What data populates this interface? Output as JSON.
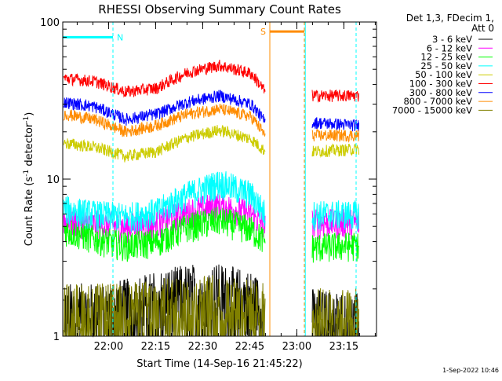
{
  "chart_data": {
    "type": "line",
    "title": "RHESSI Observing Summary Count Rates",
    "xlabel": "Start Time (14-Sep-16 21:45:22)",
    "ylabel_main": "Count Rate (s",
    "ylabel_sup1": "-1",
    "ylabel_mid": " detector",
    "ylabel_sup2": "-1",
    "ylabel_end": ")",
    "x_unit": "minutes after 21:45:22",
    "xlim": [
      0,
      100
    ],
    "ylim": [
      1,
      100
    ],
    "yscale": "log",
    "x_ticks": [
      {
        "label": "22:00",
        "value": 14.6
      },
      {
        "label": "22:15",
        "value": 29.6
      },
      {
        "label": "22:30",
        "value": 44.6
      },
      {
        "label": "22:45",
        "value": 59.6
      },
      {
        "label": "23:00",
        "value": 74.6
      },
      {
        "label": "23:15",
        "value": 89.6
      }
    ],
    "y_ticks": [
      {
        "label": "1",
        "value": 1
      },
      {
        "label": "10",
        "value": 10
      },
      {
        "label": "100",
        "value": 100
      }
    ],
    "legend_header_1": "Det 1,3, FDecim 1,",
    "legend_header_2": "Att 0",
    "legend_position": "right",
    "annotations": [
      {
        "label": "N",
        "color": "#00ffff",
        "x_start": 0,
        "x_end": 16,
        "y": 80
      },
      {
        "label": "S",
        "color": "#ff8c00",
        "x_start": 66,
        "x_end": 77,
        "y": 87
      }
    ],
    "vertical_lines": [
      {
        "x": 16,
        "color": "#00ffff",
        "dashed": true
      },
      {
        "x": 66,
        "color": "#ff8c00",
        "dashed": false
      },
      {
        "x": 77,
        "color": "#ff8c00",
        "dashed": true
      },
      {
        "x": 77.3,
        "color": "#00ffff",
        "dashed": false
      },
      {
        "x": 93.5,
        "color": "#00ffff",
        "dashed": true
      }
    ],
    "data_gap": [
      64.5,
      79.5
    ],
    "series": [
      {
        "name": "3 - 6 keV",
        "color": "#000000",
        "base": [
          1.5,
          1.5,
          1.6,
          1.8,
          2.0,
          2.0,
          1.8,
          1.5,
          1.4,
          1.3
        ]
      },
      {
        "name": "6 - 12 keV",
        "color": "#ff00ff",
        "base": [
          5.5,
          5.2,
          5.0,
          5.2,
          6.2,
          6.8,
          6.0,
          5.0,
          5.3,
          5.3
        ]
      },
      {
        "name": "12 - 25 keV",
        "color": "#00ff00",
        "base": [
          4.8,
          4.2,
          3.8,
          4.0,
          5.0,
          5.5,
          4.8,
          4.0,
          3.7,
          3.8
        ]
      },
      {
        "name": "25 - 50 keV",
        "color": "#00ffff",
        "base": [
          6.5,
          6.0,
          5.8,
          6.2,
          8.0,
          9.5,
          8.0,
          6.0,
          6.0,
          6.0
        ]
      },
      {
        "name": "50 - 100 keV",
        "color": "#cccc00",
        "base": [
          17.0,
          16.0,
          14.0,
          15.0,
          18.5,
          20.5,
          18.0,
          15.0,
          15.0,
          15.5
        ]
      },
      {
        "name": "100 - 300 keV",
        "color": "#ff0000",
        "base": [
          44.0,
          42.0,
          36.0,
          38.0,
          48.0,
          53.0,
          47.0,
          36.0,
          34.0,
          34.0
        ]
      },
      {
        "name": "300 - 800 keV",
        "color": "#0000ff",
        "base": [
          31.0,
          29.0,
          24.0,
          26.0,
          31.0,
          34.0,
          30.0,
          23.0,
          23.0,
          22.0
        ]
      },
      {
        "name": "800 - 7000 keV",
        "color": "#ff8c00",
        "base": [
          26.0,
          24.0,
          20.0,
          22.0,
          26.0,
          28.0,
          25.0,
          19.0,
          19.0,
          19.0
        ]
      },
      {
        "name": "7000 - 15000 keV",
        "color": "#808000",
        "base": [
          1.5,
          1.5,
          1.5,
          1.6,
          1.7,
          1.7,
          1.6,
          1.5,
          1.4,
          1.4
        ]
      }
    ],
    "base_x": [
      0,
      10,
      20,
      30,
      40,
      50,
      60,
      64.5,
      79.5,
      93.5
    ],
    "timestamp": "1-Sep-2022 10:46"
  }
}
